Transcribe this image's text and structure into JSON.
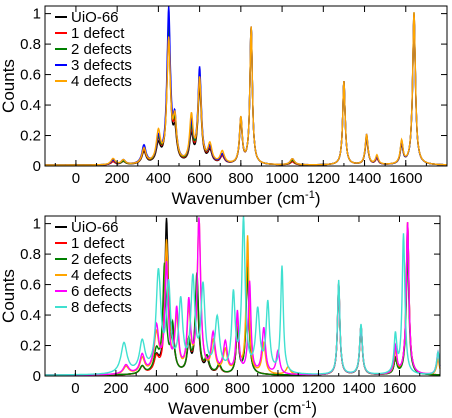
{
  "chart_data": [
    {
      "type": "line",
      "xlabel": "Wavenumber (cm",
      "xlabel_sup": "-1",
      "xlabel_close": ")",
      "ylabel": "Counts",
      "xlim": [
        -150,
        1800
      ],
      "ylim": [
        0,
        1.05
      ],
      "x_ticks": [
        "0",
        "200",
        "400",
        "600",
        "800",
        "1000",
        "1200",
        "1400",
        "1600"
      ],
      "y_ticks": [
        "0",
        "0.2",
        "0.4",
        "0.6",
        "0.8",
        "1"
      ],
      "legend_position": "top-left",
      "series": [
        {
          "name": "UiO-66",
          "color": "#000000",
          "peaks": [
            [
              180,
              0.02,
              12
            ],
            [
              230,
              0.02,
              12
            ],
            [
              330,
              0.08,
              12
            ],
            [
              400,
              0.12,
              12
            ],
            [
              450,
              0.85,
              10
            ],
            [
              480,
              0.18,
              10
            ],
            [
              560,
              0.18,
              10
            ],
            [
              600,
              0.5,
              10
            ],
            [
              650,
              0.08,
              12
            ],
            [
              710,
              0.05,
              12
            ],
            [
              800,
              0.28,
              8
            ],
            [
              850,
              0.9,
              7
            ],
            [
              1050,
              0.02,
              12
            ],
            [
              1300,
              0.55,
              7
            ],
            [
              1410,
              0.18,
              8
            ],
            [
              1460,
              0.04,
              8
            ],
            [
              1580,
              0.12,
              8
            ],
            [
              1640,
              1.0,
              8
            ]
          ]
        },
        {
          "name": "1 defect",
          "color": "#ff0000",
          "peaks": [
            [
              180,
              0.02,
              12
            ],
            [
              230,
              0.02,
              12
            ],
            [
              330,
              0.09,
              12
            ],
            [
              400,
              0.14,
              12
            ],
            [
              450,
              0.9,
              10
            ],
            [
              480,
              0.2,
              10
            ],
            [
              560,
              0.2,
              10
            ],
            [
              600,
              0.55,
              10
            ],
            [
              650,
              0.09,
              12
            ],
            [
              710,
              0.05,
              12
            ],
            [
              800,
              0.28,
              8
            ],
            [
              850,
              0.9,
              7
            ],
            [
              1050,
              0.02,
              12
            ],
            [
              1300,
              0.55,
              7
            ],
            [
              1410,
              0.18,
              8
            ],
            [
              1460,
              0.04,
              8
            ],
            [
              1580,
              0.13,
              8
            ],
            [
              1640,
              0.98,
              8
            ]
          ]
        },
        {
          "name": "2 defects",
          "color": "#008000",
          "peaks": [
            [
              180,
              0.03,
              12
            ],
            [
              230,
              0.02,
              12
            ],
            [
              330,
              0.1,
              12
            ],
            [
              400,
              0.15,
              12
            ],
            [
              450,
              0.92,
              10
            ],
            [
              480,
              0.22,
              10
            ],
            [
              560,
              0.22,
              10
            ],
            [
              600,
              0.58,
              10
            ],
            [
              650,
              0.1,
              12
            ],
            [
              710,
              0.06,
              12
            ],
            [
              800,
              0.29,
              8
            ],
            [
              850,
              0.9,
              7
            ],
            [
              1050,
              0.03,
              12
            ],
            [
              1300,
              0.55,
              7
            ],
            [
              1410,
              0.19,
              8
            ],
            [
              1460,
              0.05,
              8
            ],
            [
              1580,
              0.14,
              8
            ],
            [
              1640,
              0.97,
              8
            ]
          ]
        },
        {
          "name": "3 defects",
          "color": "#0000ff",
          "peaks": [
            [
              180,
              0.03,
              12
            ],
            [
              230,
              0.03,
              12
            ],
            [
              330,
              0.12,
              12
            ],
            [
              400,
              0.16,
              12
            ],
            [
              450,
              1.0,
              10
            ],
            [
              480,
              0.25,
              10
            ],
            [
              560,
              0.25,
              10
            ],
            [
              600,
              0.62,
              10
            ],
            [
              650,
              0.1,
              12
            ],
            [
              710,
              0.06,
              12
            ],
            [
              800,
              0.3,
              8
            ],
            [
              850,
              0.9,
              7
            ],
            [
              1050,
              0.04,
              12
            ],
            [
              1300,
              0.55,
              7
            ],
            [
              1410,
              0.2,
              8
            ],
            [
              1460,
              0.05,
              8
            ],
            [
              1580,
              0.14,
              8
            ],
            [
              1640,
              0.97,
              8
            ]
          ]
        },
        {
          "name": "4 defects",
          "color": "#ffa500",
          "peaks": [
            [
              180,
              0.04,
              12
            ],
            [
              230,
              0.03,
              12
            ],
            [
              330,
              0.1,
              12
            ],
            [
              400,
              0.2,
              12
            ],
            [
              450,
              0.8,
              10
            ],
            [
              480,
              0.26,
              10
            ],
            [
              560,
              0.3,
              10
            ],
            [
              600,
              0.55,
              10
            ],
            [
              650,
              0.12,
              12
            ],
            [
              710,
              0.08,
              12
            ],
            [
              800,
              0.3,
              8
            ],
            [
              850,
              0.9,
              7
            ],
            [
              1050,
              0.04,
              12
            ],
            [
              1300,
              0.55,
              7
            ],
            [
              1410,
              0.2,
              8
            ],
            [
              1460,
              0.06,
              8
            ],
            [
              1580,
              0.15,
              8
            ],
            [
              1640,
              1.0,
              8
            ]
          ]
        }
      ]
    },
    {
      "type": "line",
      "xlabel": "Wavenumber (cm",
      "xlabel_sup": "-1",
      "xlabel_close": ")",
      "ylabel": "Counts",
      "xlim": [
        -150,
        1800
      ],
      "ylim": [
        0,
        1.05
      ],
      "x_ticks": [
        "0",
        "200",
        "400",
        "600",
        "800",
        "1000",
        "1200",
        "1400",
        "1600"
      ],
      "y_ticks": [
        "0",
        "0.2",
        "0.4",
        "0.6",
        "0.8",
        "1"
      ],
      "legend_position": "top-left",
      "series": [
        {
          "name": "UiO-66",
          "color": "#000000",
          "peaks": [
            [
              330,
              0.05,
              14
            ],
            [
              400,
              0.1,
              14
            ],
            [
              450,
              1.0,
              10
            ],
            [
              480,
              0.2,
              10
            ],
            [
              560,
              0.18,
              10
            ],
            [
              600,
              0.55,
              10
            ],
            [
              650,
              0.08,
              12
            ],
            [
              710,
              0.05,
              12
            ],
            [
              800,
              0.28,
              8
            ],
            [
              850,
              0.75,
              8
            ],
            [
              1300,
              0.6,
              7
            ],
            [
              1410,
              0.32,
              8
            ],
            [
              1580,
              0.1,
              8
            ],
            [
              1640,
              0.98,
              8
            ]
          ]
        },
        {
          "name": "1 defect",
          "color": "#ff0000",
          "peaks": [
            [
              330,
              0.05,
              14
            ],
            [
              400,
              0.1,
              14
            ],
            [
              450,
              0.8,
              10
            ],
            [
              480,
              0.25,
              10
            ],
            [
              560,
              0.2,
              10
            ],
            [
              600,
              0.6,
              10
            ],
            [
              650,
              0.1,
              12
            ],
            [
              710,
              0.05,
              12
            ],
            [
              800,
              0.3,
              8
            ],
            [
              850,
              0.75,
              8
            ],
            [
              1300,
              0.6,
              7
            ],
            [
              1410,
              0.32,
              8
            ],
            [
              1580,
              0.1,
              8
            ],
            [
              1640,
              1.0,
              8
            ]
          ]
        },
        {
          "name": "2 defects",
          "color": "#008000",
          "peaks": [
            [
              330,
              0.05,
              14
            ],
            [
              400,
              0.14,
              14
            ],
            [
              440,
              0.7,
              10
            ],
            [
              480,
              0.3,
              10
            ],
            [
              560,
              0.2,
              10
            ],
            [
              600,
              0.65,
              10
            ],
            [
              650,
              0.1,
              12
            ],
            [
              710,
              0.06,
              12
            ],
            [
              800,
              0.3,
              8
            ],
            [
              850,
              0.7,
              8
            ],
            [
              1300,
              0.58,
              7
            ],
            [
              1410,
              0.3,
              8
            ],
            [
              1580,
              0.1,
              8
            ],
            [
              1640,
              0.8,
              8
            ]
          ]
        },
        {
          "name": "4 defects",
          "color": "#ffa500",
          "peaks": [
            [
              250,
              0.05,
              16
            ],
            [
              330,
              0.1,
              14
            ],
            [
              400,
              0.25,
              14
            ],
            [
              450,
              0.85,
              10
            ],
            [
              500,
              0.35,
              10
            ],
            [
              560,
              0.4,
              10
            ],
            [
              610,
              1.0,
              10
            ],
            [
              680,
              0.2,
              12
            ],
            [
              740,
              0.15,
              12
            ],
            [
              800,
              0.35,
              8
            ],
            [
              850,
              0.9,
              8
            ],
            [
              930,
              0.2,
              10
            ],
            [
              1050,
              0.05,
              12
            ],
            [
              1300,
              0.6,
              7
            ],
            [
              1410,
              0.32,
              8
            ],
            [
              1580,
              0.15,
              8
            ],
            [
              1640,
              1.0,
              8
            ],
            [
              1790,
              0.1,
              8
            ]
          ]
        },
        {
          "name": "6 defects",
          "color": "#ff00ff",
          "peaks": [
            [
              250,
              0.06,
              16
            ],
            [
              330,
              0.12,
              14
            ],
            [
              400,
              0.3,
              14
            ],
            [
              450,
              0.7,
              10
            ],
            [
              500,
              0.4,
              10
            ],
            [
              560,
              0.45,
              10
            ],
            [
              610,
              1.0,
              10
            ],
            [
              680,
              0.25,
              12
            ],
            [
              740,
              0.2,
              12
            ],
            [
              800,
              0.4,
              8
            ],
            [
              860,
              0.6,
              8
            ],
            [
              930,
              0.3,
              10
            ],
            [
              1000,
              0.15,
              10
            ],
            [
              1300,
              0.6,
              7
            ],
            [
              1410,
              0.32,
              8
            ],
            [
              1580,
              0.18,
              8
            ],
            [
              1640,
              1.0,
              8
            ],
            [
              1790,
              0.15,
              8
            ]
          ]
        },
        {
          "name": "8 defects",
          "color": "#40e0d0",
          "peaks": [
            [
              240,
              0.2,
              18
            ],
            [
              330,
              0.2,
              16
            ],
            [
              410,
              0.65,
              14
            ],
            [
              460,
              0.55,
              12
            ],
            [
              520,
              0.45,
              12
            ],
            [
              580,
              0.6,
              12
            ],
            [
              630,
              0.55,
              12
            ],
            [
              700,
              0.35,
              14
            ],
            [
              780,
              0.5,
              10
            ],
            [
              830,
              1.0,
              10
            ],
            [
              900,
              0.4,
              12
            ],
            [
              950,
              0.45,
              10
            ],
            [
              1020,
              0.7,
              8
            ],
            [
              1300,
              0.62,
              7
            ],
            [
              1410,
              0.33,
              8
            ],
            [
              1580,
              0.25,
              8
            ],
            [
              1620,
              0.92,
              8
            ],
            [
              1790,
              0.15,
              8
            ]
          ]
        }
      ]
    }
  ]
}
